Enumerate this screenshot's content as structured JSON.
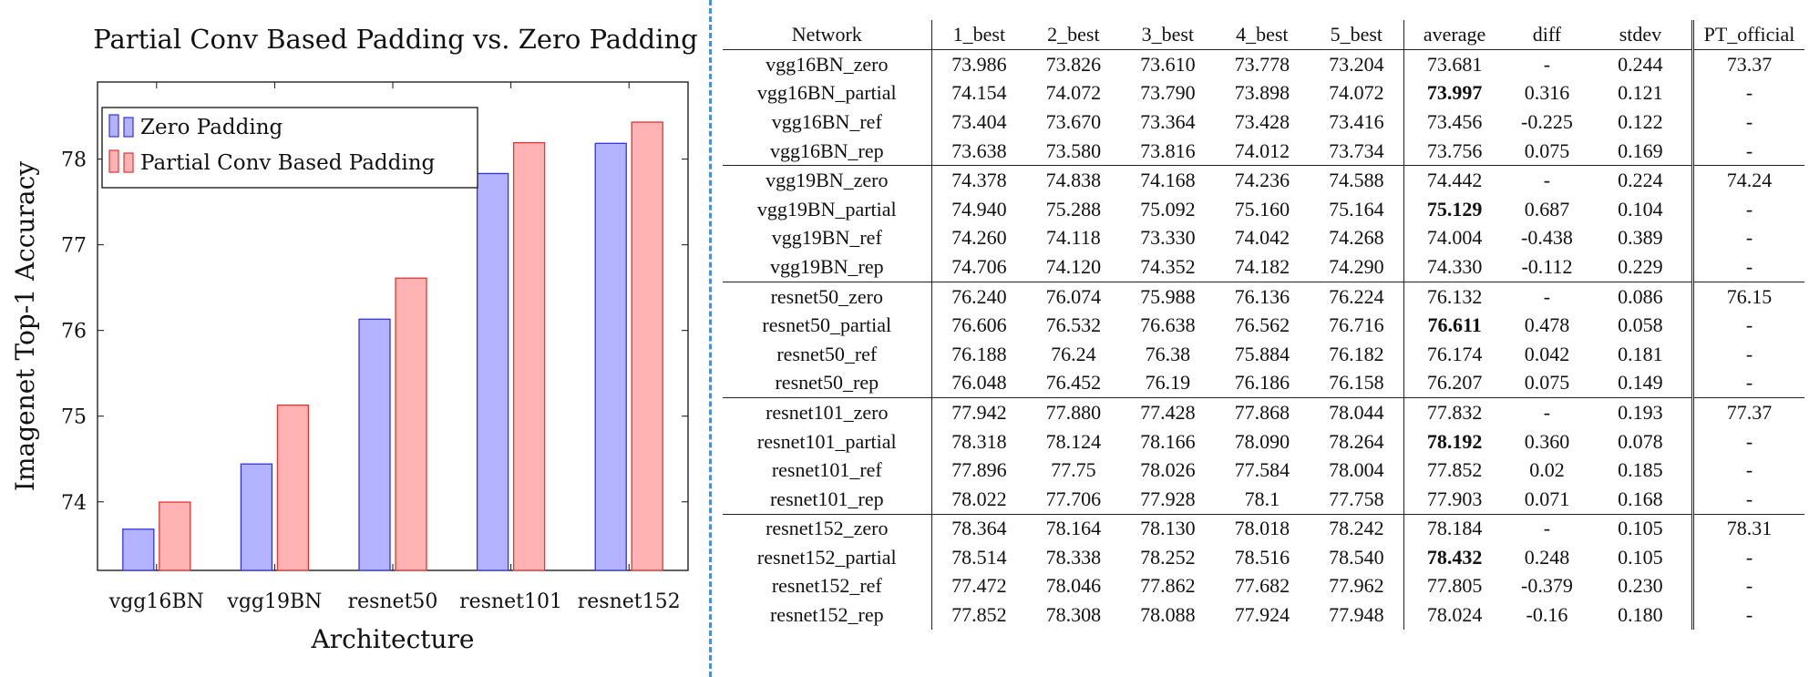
{
  "chart_data": {
    "type": "bar",
    "title": "Partial Conv Based Padding vs. Zero Padding",
    "xlabel": "Architecture",
    "ylabel": "Imagenet Top-1 Accuracy",
    "categories": [
      "vgg16BN",
      "vgg19BN",
      "resnet50",
      "resnet101",
      "resnet152"
    ],
    "series": [
      {
        "name": "Zero Padding",
        "values": [
          73.681,
          74.442,
          76.132,
          77.832,
          78.184
        ],
        "color": "#b3b3ff",
        "edge": "#3333e6"
      },
      {
        "name": "Partial Conv Based Padding",
        "values": [
          73.997,
          75.129,
          76.611,
          78.192,
          78.432
        ],
        "color": "#ffb3b3",
        "edge": "#e63333"
      }
    ],
    "ylim": [
      73.2,
      78.9
    ],
    "yticks": [
      74,
      75,
      76,
      77,
      78
    ],
    "legend": "top-left",
    "grid": false
  },
  "table": {
    "headers": [
      "Network",
      "1_best",
      "2_best",
      "3_best",
      "4_best",
      "5_best",
      "average",
      "diff",
      "stdev",
      "PT_official"
    ],
    "groups": [
      [
        [
          "vgg16BN_zero",
          "73.986",
          "73.826",
          "73.610",
          "73.778",
          "73.204",
          "73.681",
          "-",
          "0.244",
          "73.37"
        ],
        [
          "vgg16BN_partial",
          "74.154",
          "74.072",
          "73.790",
          "73.898",
          "74.072",
          "73.997",
          "0.316",
          "0.121",
          "-"
        ],
        [
          "vgg16BN_ref",
          "73.404",
          "73.670",
          "73.364",
          "73.428",
          "73.416",
          "73.456",
          "-0.225",
          "0.122",
          "-"
        ],
        [
          "vgg16BN_rep",
          "73.638",
          "73.580",
          "73.816",
          "74.012",
          "73.734",
          "73.756",
          "0.075",
          "0.169",
          "-"
        ]
      ],
      [
        [
          "vgg19BN_zero",
          "74.378",
          "74.838",
          "74.168",
          "74.236",
          "74.588",
          "74.442",
          "-",
          "0.224",
          "74.24"
        ],
        [
          "vgg19BN_partial",
          "74.940",
          "75.288",
          "75.092",
          "75.160",
          "75.164",
          "75.129",
          "0.687",
          "0.104",
          "-"
        ],
        [
          "vgg19BN_ref",
          "74.260",
          "74.118",
          "73.330",
          "74.042",
          "74.268",
          "74.004",
          "-0.438",
          "0.389",
          "-"
        ],
        [
          "vgg19BN_rep",
          "74.706",
          "74.120",
          "74.352",
          "74.182",
          "74.290",
          "74.330",
          "-0.112",
          "0.229",
          "-"
        ]
      ],
      [
        [
          "resnet50_zero",
          "76.240",
          "76.074",
          "75.988",
          "76.136",
          "76.224",
          "76.132",
          "-",
          "0.086",
          "76.15"
        ],
        [
          "resnet50_partial",
          "76.606",
          "76.532",
          "76.638",
          "76.562",
          "76.716",
          "76.611",
          "0.478",
          "0.058",
          "-"
        ],
        [
          "resnet50_ref",
          "76.188",
          "76.24",
          "76.38",
          "75.884",
          "76.182",
          "76.174",
          "0.042",
          "0.181",
          "-"
        ],
        [
          "resnet50_rep",
          "76.048",
          "76.452",
          "76.19",
          "76.186",
          "76.158",
          "76.207",
          "0.075",
          "0.149",
          "-"
        ]
      ],
      [
        [
          "resnet101_zero",
          "77.942",
          "77.880",
          "77.428",
          "77.868",
          "78.044",
          "77.832",
          "-",
          "0.193",
          "77.37"
        ],
        [
          "resnet101_partial",
          "78.318",
          "78.124",
          "78.166",
          "78.090",
          "78.264",
          "78.192",
          "0.360",
          "0.078",
          "-"
        ],
        [
          "resnet101_ref",
          "77.896",
          "77.75",
          "78.026",
          "77.584",
          "78.004",
          "77.852",
          "0.02",
          "0.185",
          "-"
        ],
        [
          "resnet101_rep",
          "78.022",
          "77.706",
          "77.928",
          "78.1",
          "77.758",
          "77.903",
          "0.071",
          "0.168",
          "-"
        ]
      ],
      [
        [
          "resnet152_zero",
          "78.364",
          "78.164",
          "78.130",
          "78.018",
          "78.242",
          "78.184",
          "-",
          "0.105",
          "78.31"
        ],
        [
          "resnet152_partial",
          "78.514",
          "78.338",
          "78.252",
          "78.516",
          "78.540",
          "78.432",
          "0.248",
          "0.105",
          "-"
        ],
        [
          "resnet152_ref",
          "77.472",
          "78.046",
          "77.862",
          "77.682",
          "77.962",
          "77.805",
          "-0.379",
          "0.230",
          "-"
        ],
        [
          "resnet152_rep",
          "77.852",
          "78.308",
          "78.088",
          "77.924",
          "77.948",
          "78.024",
          "-0.16",
          "0.180",
          "-"
        ]
      ]
    ]
  }
}
